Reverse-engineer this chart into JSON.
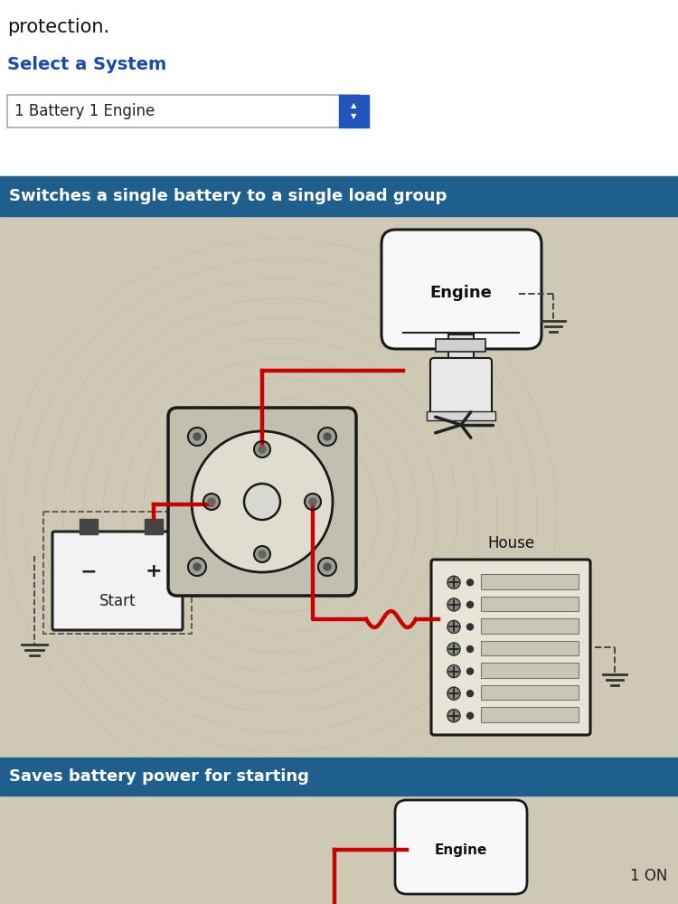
{
  "page_bg": "#ffffff",
  "title_text": "protection.",
  "select_system_label": "Select a System",
  "dropdown_text": "1 Battery 1 Engine",
  "banner1_text": "Switches a single battery to a single load group",
  "banner2_text": "Saves battery power for starting",
  "banner_bg": "#1e5f8e",
  "banner_text_color": "#ffffff",
  "engine_label": "Engine",
  "house_label": "House",
  "start_label": "Start",
  "wire_color": "#cc0000",
  "component_color": "#222222",
  "diagram_bg": "#cdc9b4",
  "bottom_engine_label": "Engine",
  "bottom_right_text": "1 ON",
  "select_color": "#2255bb",
  "title_color": "#111111",
  "select_label_color": "#1a4aaa"
}
